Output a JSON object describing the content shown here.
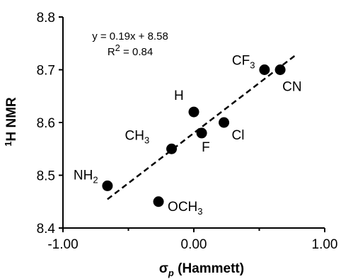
{
  "chart_data": {
    "type": "scatter",
    "title": "",
    "xlabel": {
      "symbol": "σ",
      "subscript": "p",
      "rest": " (Hammett)"
    },
    "ylabel": {
      "superscript": "1",
      "rest": "H NMR"
    },
    "xlim": [
      -1.0,
      1.0
    ],
    "ylim": [
      8.4,
      8.8
    ],
    "x_ticks": [
      "-1.00",
      "0.00",
      "1.00"
    ],
    "y_ticks": [
      "8.4",
      "8.5",
      "8.6",
      "8.7",
      "8.8"
    ],
    "grid": false,
    "legend": "none",
    "points": [
      {
        "name": "NH",
        "sub": "2",
        "x": -0.66,
        "y": 8.48
      },
      {
        "name": "OCH",
        "sub": "3",
        "x": -0.27,
        "y": 8.45
      },
      {
        "name": "CH",
        "sub": "3",
        "x": -0.17,
        "y": 8.55
      },
      {
        "name": "H",
        "sub": "",
        "x": 0.0,
        "y": 8.62
      },
      {
        "name": "F",
        "sub": "",
        "x": 0.06,
        "y": 8.58
      },
      {
        "name": "Cl",
        "sub": "",
        "x": 0.23,
        "y": 8.6
      },
      {
        "name": "CF",
        "sub": "3",
        "x": 0.54,
        "y": 8.7
      },
      {
        "name": "CN",
        "sub": "",
        "x": 0.66,
        "y": 8.7
      }
    ],
    "trendline": {
      "slope": 0.19,
      "intercept": 8.58,
      "x_range": [
        -0.66,
        0.78
      ],
      "style": "dashed"
    },
    "equation": "y = 0.19x + 8.58",
    "r_squared": {
      "prefix": "R",
      "superscript": "2",
      "rest": " = 0.84"
    },
    "colors": {
      "points": "#000000",
      "axes": "#000000",
      "trendline": "#000000"
    }
  }
}
